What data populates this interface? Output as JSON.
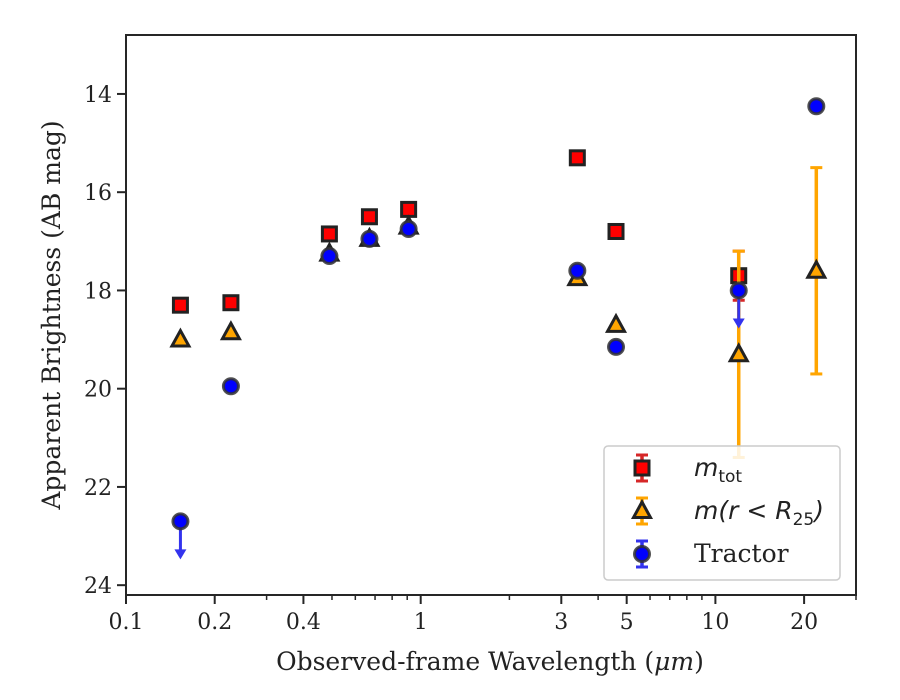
{
  "chart_data": {
    "type": "scatter",
    "xlabel_prefix": "Observed-frame Wavelength (",
    "xlabel_unit": "μm",
    "xlabel_suffix": ")",
    "ylabel": "Apparent Brightness (AB mag)",
    "xscale": "log",
    "xlim": [
      0.1,
      30
    ],
    "ylim": [
      24.2,
      12.8
    ],
    "y_inverted": true,
    "xticks": [
      0.1,
      0.2,
      0.4,
      1,
      3,
      5,
      10,
      20
    ],
    "xtick_labels": [
      "0.1",
      "0.2",
      "0.4",
      "1",
      "3",
      "5",
      "10",
      "20"
    ],
    "yticks": [
      14,
      16,
      18,
      20,
      22,
      24
    ],
    "ytick_labels": [
      "14",
      "16",
      "18",
      "20",
      "22",
      "24"
    ],
    "grid": false,
    "legend": {
      "position": "lower-right",
      "entries": [
        {
          "series": "mtot",
          "prefix": "m",
          "sub": "tot",
          "suffix": ""
        },
        {
          "series": "mr25",
          "prefix": "m(r < R",
          "sub": "25",
          "suffix": ")"
        },
        {
          "series": "tractor",
          "text": "Tractor"
        }
      ]
    },
    "series": [
      {
        "key": "mtot",
        "marker": "square",
        "color": "#ff0000",
        "edge": "#222222",
        "error_color": "#d62728",
        "points": [
          {
            "x": 0.153,
            "y": 18.3
          },
          {
            "x": 0.227,
            "y": 18.25
          },
          {
            "x": 0.49,
            "y": 16.85
          },
          {
            "x": 0.67,
            "y": 16.5
          },
          {
            "x": 0.91,
            "y": 16.35
          },
          {
            "x": 3.4,
            "y": 15.3
          },
          {
            "x": 4.6,
            "y": 16.8
          },
          {
            "x": 12.0,
            "y": 17.7,
            "err": 0.5
          }
        ]
      },
      {
        "key": "mr25",
        "marker": "triangle",
        "color": "#ffa500",
        "edge": "#222222",
        "error_color": "#ffa500",
        "points": [
          {
            "x": 0.153,
            "y": 19.0
          },
          {
            "x": 0.227,
            "y": 18.85
          },
          {
            "x": 0.49,
            "y": 17.25
          },
          {
            "x": 0.67,
            "y": 16.95
          },
          {
            "x": 0.91,
            "y": 16.7
          },
          {
            "x": 3.4,
            "y": 17.75
          },
          {
            "x": 4.6,
            "y": 18.7
          },
          {
            "x": 12.0,
            "y": 19.3,
            "err": 2.1
          },
          {
            "x": 22.0,
            "y": 17.6,
            "err": 2.1
          }
        ]
      },
      {
        "key": "tractor",
        "marker": "circle",
        "color": "#0000ff",
        "edge": "#333333",
        "error_color": "#3333ee",
        "points": [
          {
            "x": 0.153,
            "y": 22.7,
            "upper_limit": true
          },
          {
            "x": 0.227,
            "y": 19.95
          },
          {
            "x": 0.49,
            "y": 17.3
          },
          {
            "x": 0.67,
            "y": 16.95
          },
          {
            "x": 0.91,
            "y": 16.75
          },
          {
            "x": 3.4,
            "y": 17.6
          },
          {
            "x": 4.6,
            "y": 19.15
          },
          {
            "x": 12.0,
            "y": 18.0,
            "upper_limit": true
          },
          {
            "x": 22.0,
            "y": 14.25
          }
        ]
      }
    ]
  }
}
